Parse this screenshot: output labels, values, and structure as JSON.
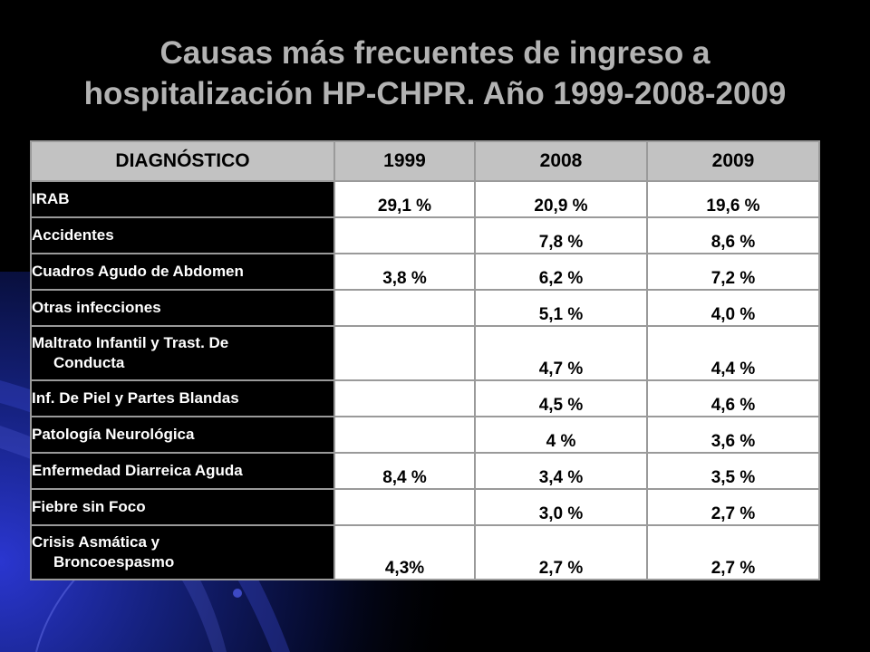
{
  "slide": {
    "title_line1": "Causas más frecuentes de ingreso a",
    "title_line2": "hospitalización HP-CHPR.  Año 1999-2008-2009"
  },
  "table": {
    "headers": [
      "DIAGNÓSTICO",
      "1999",
      "2008",
      "2009"
    ],
    "rows": [
      {
        "diag": "IRAB",
        "diag_cont": "",
        "y1999": "29,1 %",
        "y2008": "20,9 %",
        "y2009": "19,6 %"
      },
      {
        "diag": "Accidentes",
        "diag_cont": "",
        "y1999": "",
        "y2008": "7,8 %",
        "y2009": "8,6 %"
      },
      {
        "diag": "Cuadros Agudo de Abdomen",
        "diag_cont": "",
        "y1999": "3,8 %",
        "y2008": "6,2 %",
        "y2009": "7,2 %"
      },
      {
        "diag": "Otras infecciones",
        "diag_cont": "",
        "y1999": "",
        "y2008": "5,1 %",
        "y2009": "4,0 %"
      },
      {
        "diag": "Maltrato Infantil y Trast. De",
        "diag_cont": "Conducta",
        "y1999": "",
        "y2008": "4,7 %",
        "y2009": "4,4 %"
      },
      {
        "diag": "Inf. De Piel y Partes Blandas",
        "diag_cont": "",
        "y1999": "",
        "y2008": "4,5 %",
        "y2009": "4,6  %"
      },
      {
        "diag": "Patología Neurológica",
        "diag_cont": "",
        "y1999": "",
        "y2008": "4 %",
        "y2009": "3,6 %"
      },
      {
        "diag": "Enfermedad Diarreica Aguda",
        "diag_cont": "",
        "y1999": "8,4 %",
        "y2008": "3,4 %",
        "y2009": "3,5 %"
      },
      {
        "diag": "Fiebre sin Foco",
        "diag_cont": "",
        "y1999": "",
        "y2008": "3,0 %",
        "y2009": "2,7 %"
      },
      {
        "diag": "Crisis Asmática y",
        "diag_cont": "Broncoespasmo",
        "y1999": "4,3%",
        "y2008": "2,7 %",
        "y2009": "2,7 %"
      }
    ]
  },
  "colors": {
    "background": "#000000",
    "accent_blue": "#1a2aa8",
    "title": "#b3b3b3",
    "header_fill": "#c2c2c2"
  }
}
